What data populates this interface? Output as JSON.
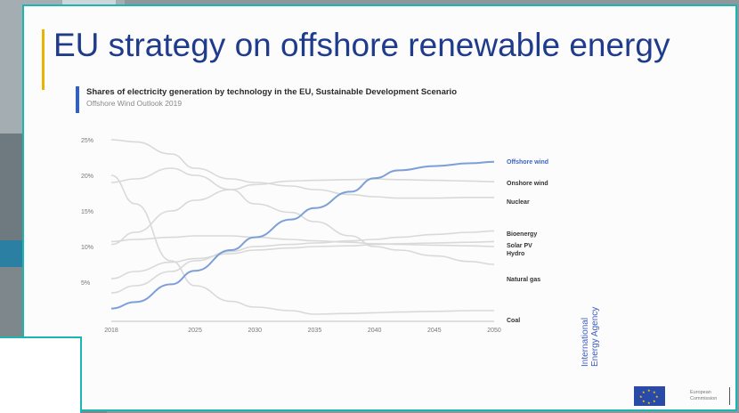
{
  "slide": {
    "title": "EU strategy on offshore renewable energy",
    "chart_title": "Shares of electricity generation by technology in the EU, Sustainable Development Scenario",
    "chart_subtitle": "Offshore Wind Outlook 2019",
    "source_line1": "International",
    "source_line2": "Energy Agency",
    "footer_logo_text_line1": "European",
    "footer_logo_text_line2": "Commission"
  },
  "colors": {
    "title": "#1f3c8c",
    "accent_bar": "#2d5fd0",
    "highlight_series": "#7d9fd8",
    "other_series": "#d9d9d9",
    "frame": "#1cb5b0"
  },
  "chart_data": {
    "type": "line",
    "title": "Shares of electricity generation by technology in the EU, Sustainable Development Scenario",
    "subtitle": "Offshore Wind Outlook 2019",
    "xlabel": "",
    "ylabel": "",
    "x_ticks": [
      "2018",
      "2025",
      "2030",
      "2035",
      "2040",
      "2045",
      "2050"
    ],
    "y_ticks": [
      "5%",
      "10%",
      "15%",
      "20%",
      "25%"
    ],
    "xlim": [
      2018,
      2050
    ],
    "ylim": [
      0,
      25
    ],
    "x": [
      2018,
      2020,
      2023,
      2025,
      2028,
      2030,
      2033,
      2035,
      2038,
      2040,
      2042,
      2045,
      2048,
      2050
    ],
    "series": [
      {
        "name": "Offshore wind",
        "highlight": true,
        "values": [
          1.3,
          2.2,
          4.7,
          6.6,
          9.5,
          11.3,
          13.8,
          15.4,
          17.7,
          19.6,
          20.7,
          21.3,
          21.7,
          21.9
        ]
      },
      {
        "name": "Onshore wind",
        "values": [
          10.3,
          12.0,
          15.0,
          16.5,
          18.0,
          18.7,
          19.2,
          19.3,
          19.4,
          19.5,
          19.4,
          19.3,
          19.2,
          19.1
        ]
      },
      {
        "name": "Nuclear",
        "values": [
          25.0,
          24.7,
          23.0,
          21.0,
          19.5,
          19.0,
          18.5,
          18.0,
          17.3,
          17.0,
          16.8,
          16.8,
          16.9,
          16.9
        ]
      },
      {
        "name": "Bioenergy",
        "values": [
          3.5,
          4.5,
          6.5,
          8.0,
          9.3,
          10.0,
          10.3,
          10.5,
          10.8,
          11.0,
          11.3,
          11.7,
          12.0,
          12.2
        ]
      },
      {
        "name": "Solar PV",
        "values": [
          5.5,
          6.5,
          7.8,
          8.3,
          9.0,
          9.5,
          9.8,
          10.0,
          10.1,
          10.3,
          10.4,
          10.5,
          10.6,
          10.7
        ]
      },
      {
        "name": "Hydro",
        "values": [
          10.7,
          11.0,
          11.3,
          11.5,
          11.5,
          11.3,
          11.0,
          10.8,
          10.6,
          10.4,
          10.3,
          10.2,
          10.1,
          10.0
        ]
      },
      {
        "name": "Natural gas",
        "values": [
          19.0,
          19.5,
          21.0,
          20.0,
          18.0,
          16.0,
          14.8,
          13.5,
          11.5,
          10.0,
          9.5,
          8.7,
          7.9,
          7.5
        ]
      },
      {
        "name": "Coal",
        "values": [
          20.0,
          16.0,
          8.0,
          4.5,
          2.3,
          1.5,
          1.0,
          0.5,
          0.6,
          0.7,
          0.8,
          0.9,
          1.0,
          1.0
        ]
      }
    ]
  }
}
